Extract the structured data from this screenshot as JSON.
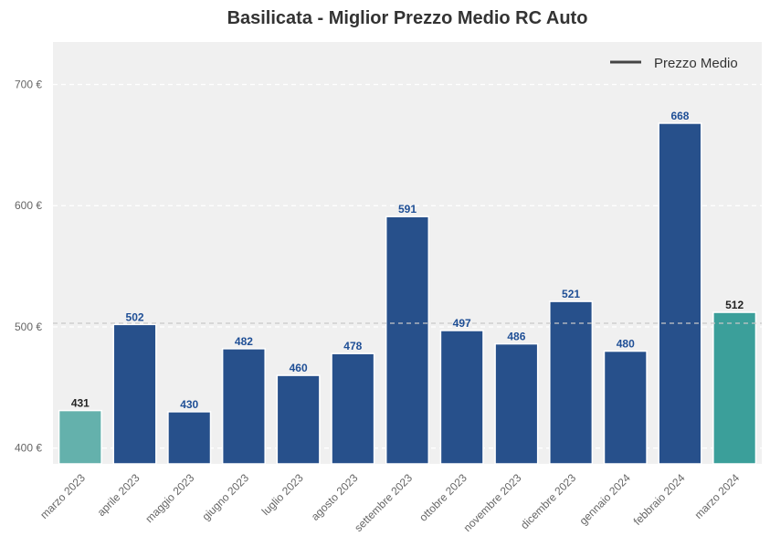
{
  "chart_data": {
    "type": "bar",
    "title": "Basilicata - Miglior Prezzo Medio RC Auto",
    "xlabel": "",
    "ylabel": "",
    "categories": [
      "marzo 2023",
      "aprile 2023",
      "maggio 2023",
      "giugno 2023",
      "luglio 2023",
      "agosto 2023",
      "settembre 2023",
      "ottobre 2023",
      "novembre 2023",
      "dicembre 2023",
      "gennaio 2024",
      "febbraio 2024",
      "marzo 2024"
    ],
    "values": [
      431,
      502,
      430,
      482,
      460,
      478,
      591,
      497,
      486,
      521,
      480,
      668,
      512
    ],
    "value_labels": [
      "431",
      "502",
      "430",
      "482",
      "460",
      "478",
      "591",
      "497",
      "486",
      "521",
      "480",
      "668",
      "512"
    ],
    "bar_colors": [
      "#64b1ac",
      "#27508b",
      "#27508b",
      "#27508b",
      "#27508b",
      "#27508b",
      "#27508b",
      "#27508b",
      "#27508b",
      "#27508b",
      "#27508b",
      "#27508b",
      "#3b9f9a"
    ],
    "value_label_colors": [
      "#222222",
      "#1f4f96",
      "#1f4f96",
      "#1f4f96",
      "#1f4f96",
      "#1f4f96",
      "#1f4f96",
      "#1f4f96",
      "#1f4f96",
      "#1f4f96",
      "#1f4f96",
      "#1f4f96",
      "#222222"
    ],
    "ylim": [
      387,
      735
    ],
    "yticks": [
      400,
      500,
      600,
      700
    ],
    "ytick_labels": [
      "400 €",
      "500 €",
      "600 €",
      "700 €"
    ],
    "average_line": 503,
    "legend": {
      "entries": [
        "Prezzo Medio"
      ],
      "position": "top-right",
      "line_color": "#444444"
    },
    "grid": true,
    "background_color": "#f0f0f0"
  }
}
